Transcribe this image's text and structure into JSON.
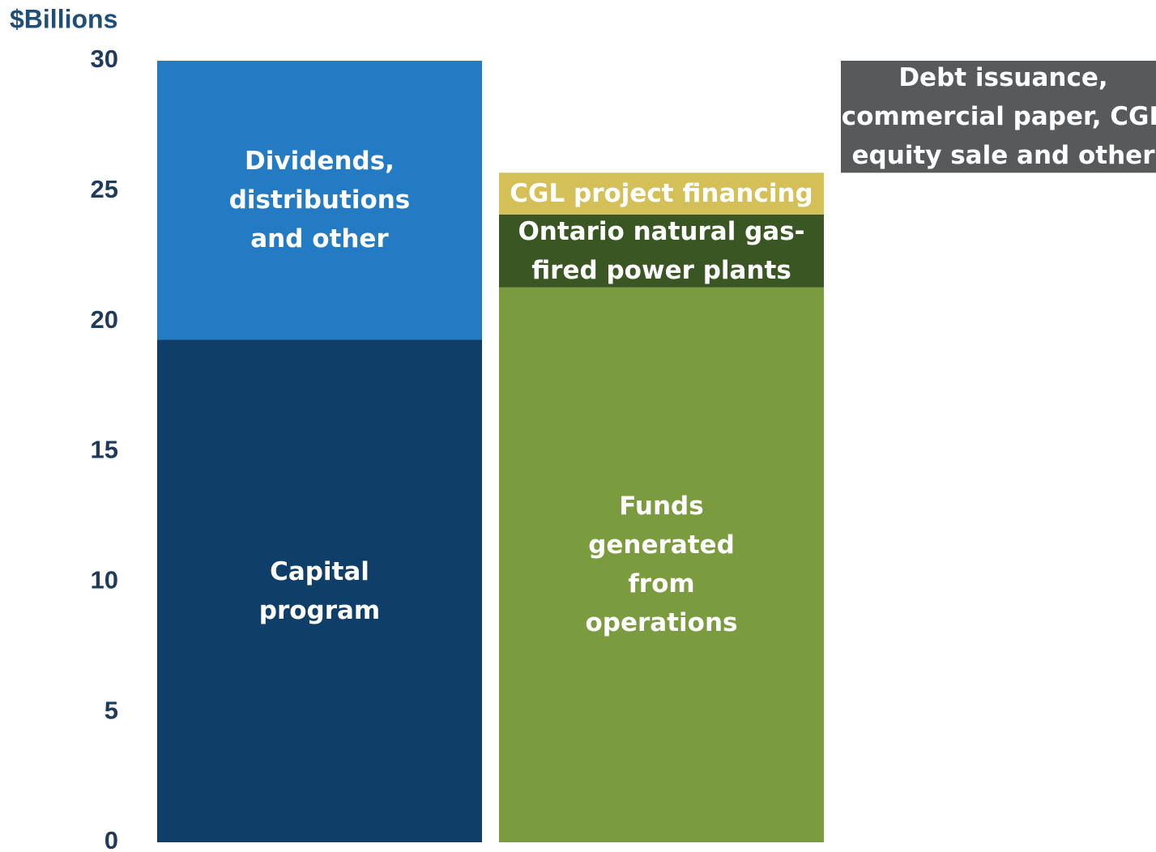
{
  "chart_data": {
    "type": "waterfall",
    "y_label": "$Billions",
    "categories": [
      null,
      null,
      null
    ],
    "series": [
      {
        "name": "Capital program",
        "color": "#0f3e68",
        "values": [
          19.3,
          null,
          null
        ]
      },
      {
        "name": "Dividends, distributions and other",
        "color": "#237bc3",
        "values": [
          10.7,
          null,
          null
        ]
      },
      {
        "name": "Funds generated from operations",
        "color": "#7a9b3e",
        "values": [
          null,
          21.3,
          null
        ]
      },
      {
        "name": "Ontario natural gas-fired power plants",
        "color": "#3a5622",
        "values": [
          null,
          2.8,
          null
        ]
      },
      {
        "name": "CGL project financing",
        "color": "#d4c057",
        "values": [
          null,
          1.6,
          null
        ]
      },
      {
        "name": "Debt issuance, commercial paper, CGL equity sale and other",
        "color": "#58595b",
        "values": [
          null,
          null,
          4.3
        ]
      }
    ],
    "ylim": [
      0,
      30
    ],
    "yticks": [
      0,
      5,
      10,
      15,
      20,
      25,
      30
    ],
    "grid": false
  }
}
